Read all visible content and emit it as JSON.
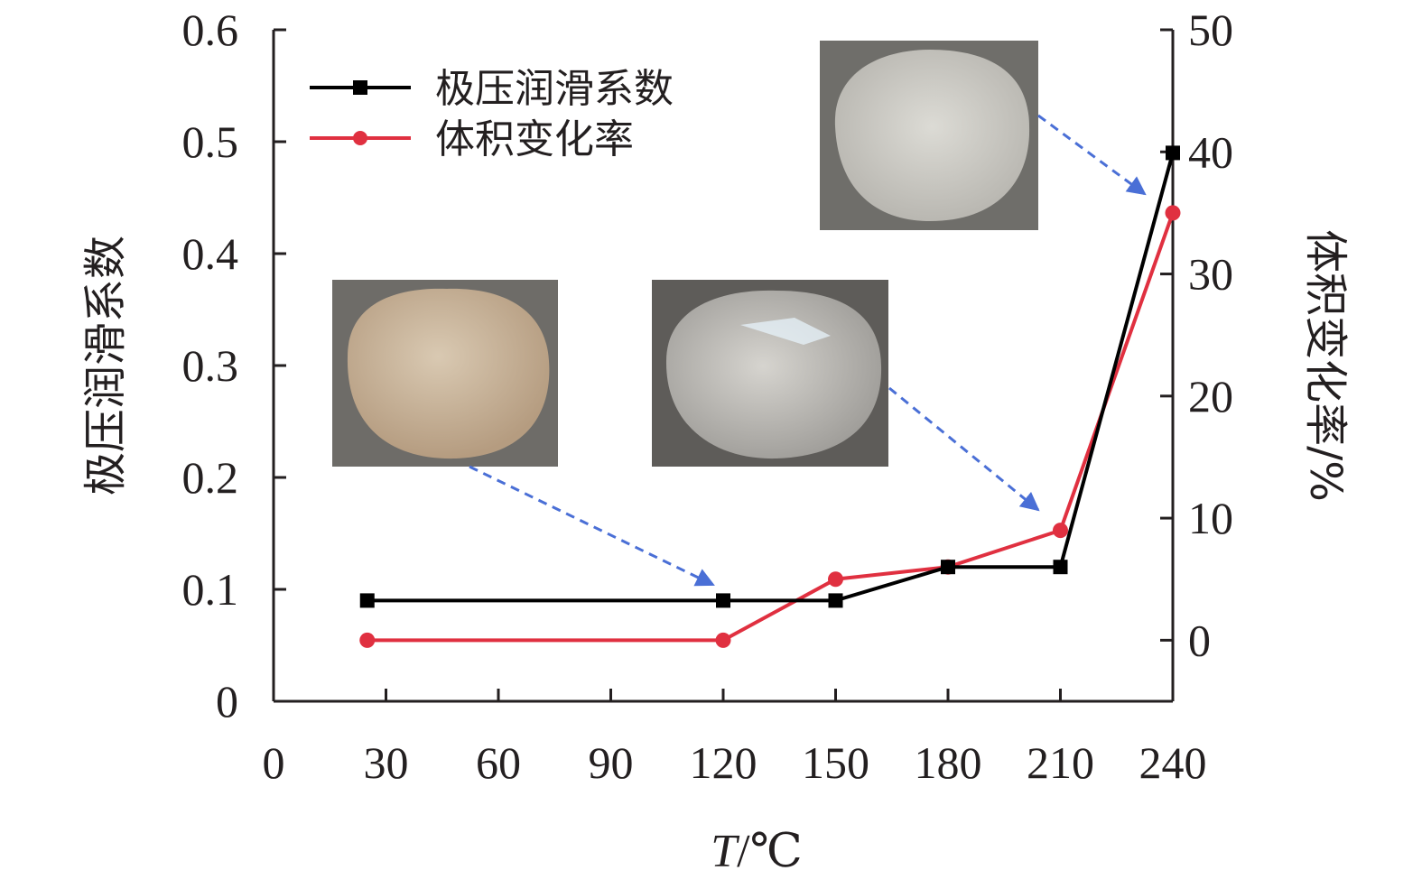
{
  "chart_data": {
    "type": "line",
    "xlabel_italic": "T",
    "xlabel_unit": "/℃",
    "ylabel_left": "极压润滑系数",
    "ylabel_right": "体积变化率/%",
    "x_ticks": [
      "0",
      "30",
      "60",
      "90",
      "120",
      "150",
      "180",
      "210",
      "240"
    ],
    "y_left_ticks": [
      "0",
      "0.1",
      "0.2",
      "0.3",
      "0.4",
      "0.5",
      "0.6"
    ],
    "y_right_ticks": [
      "0",
      "10",
      "20",
      "30",
      "40",
      "50"
    ],
    "xlim": [
      0,
      240
    ],
    "ylim_left": [
      0,
      0.6
    ],
    "ylim_right": [
      -5,
      50
    ],
    "series": [
      {
        "name": "极压润滑系数",
        "axis": "left",
        "color": "#000000",
        "marker": "square",
        "x": [
          25,
          120,
          150,
          180,
          210,
          240
        ],
        "values": [
          0.09,
          0.09,
          0.09,
          0.12,
          0.12,
          0.49
        ]
      },
      {
        "name": "体积变化率",
        "axis": "right",
        "color": "#e03040",
        "marker": "circle",
        "x": [
          25,
          120,
          150,
          180,
          210,
          240
        ],
        "values": [
          0,
          0,
          5,
          6,
          9,
          35
        ]
      }
    ],
    "legend_position": "top-left",
    "grid": false
  },
  "photos": [
    {
      "name": "sample-photo-25C",
      "tint": "#c9b39a",
      "points_to_x": 120
    },
    {
      "name": "sample-photo-150C",
      "tint": "#c4c2bd",
      "points_to_x": 210
    },
    {
      "name": "sample-photo-240C",
      "tint": "#c7c6c0",
      "points_to_x": 240
    }
  ],
  "arrow_color": "#4a6fd6"
}
